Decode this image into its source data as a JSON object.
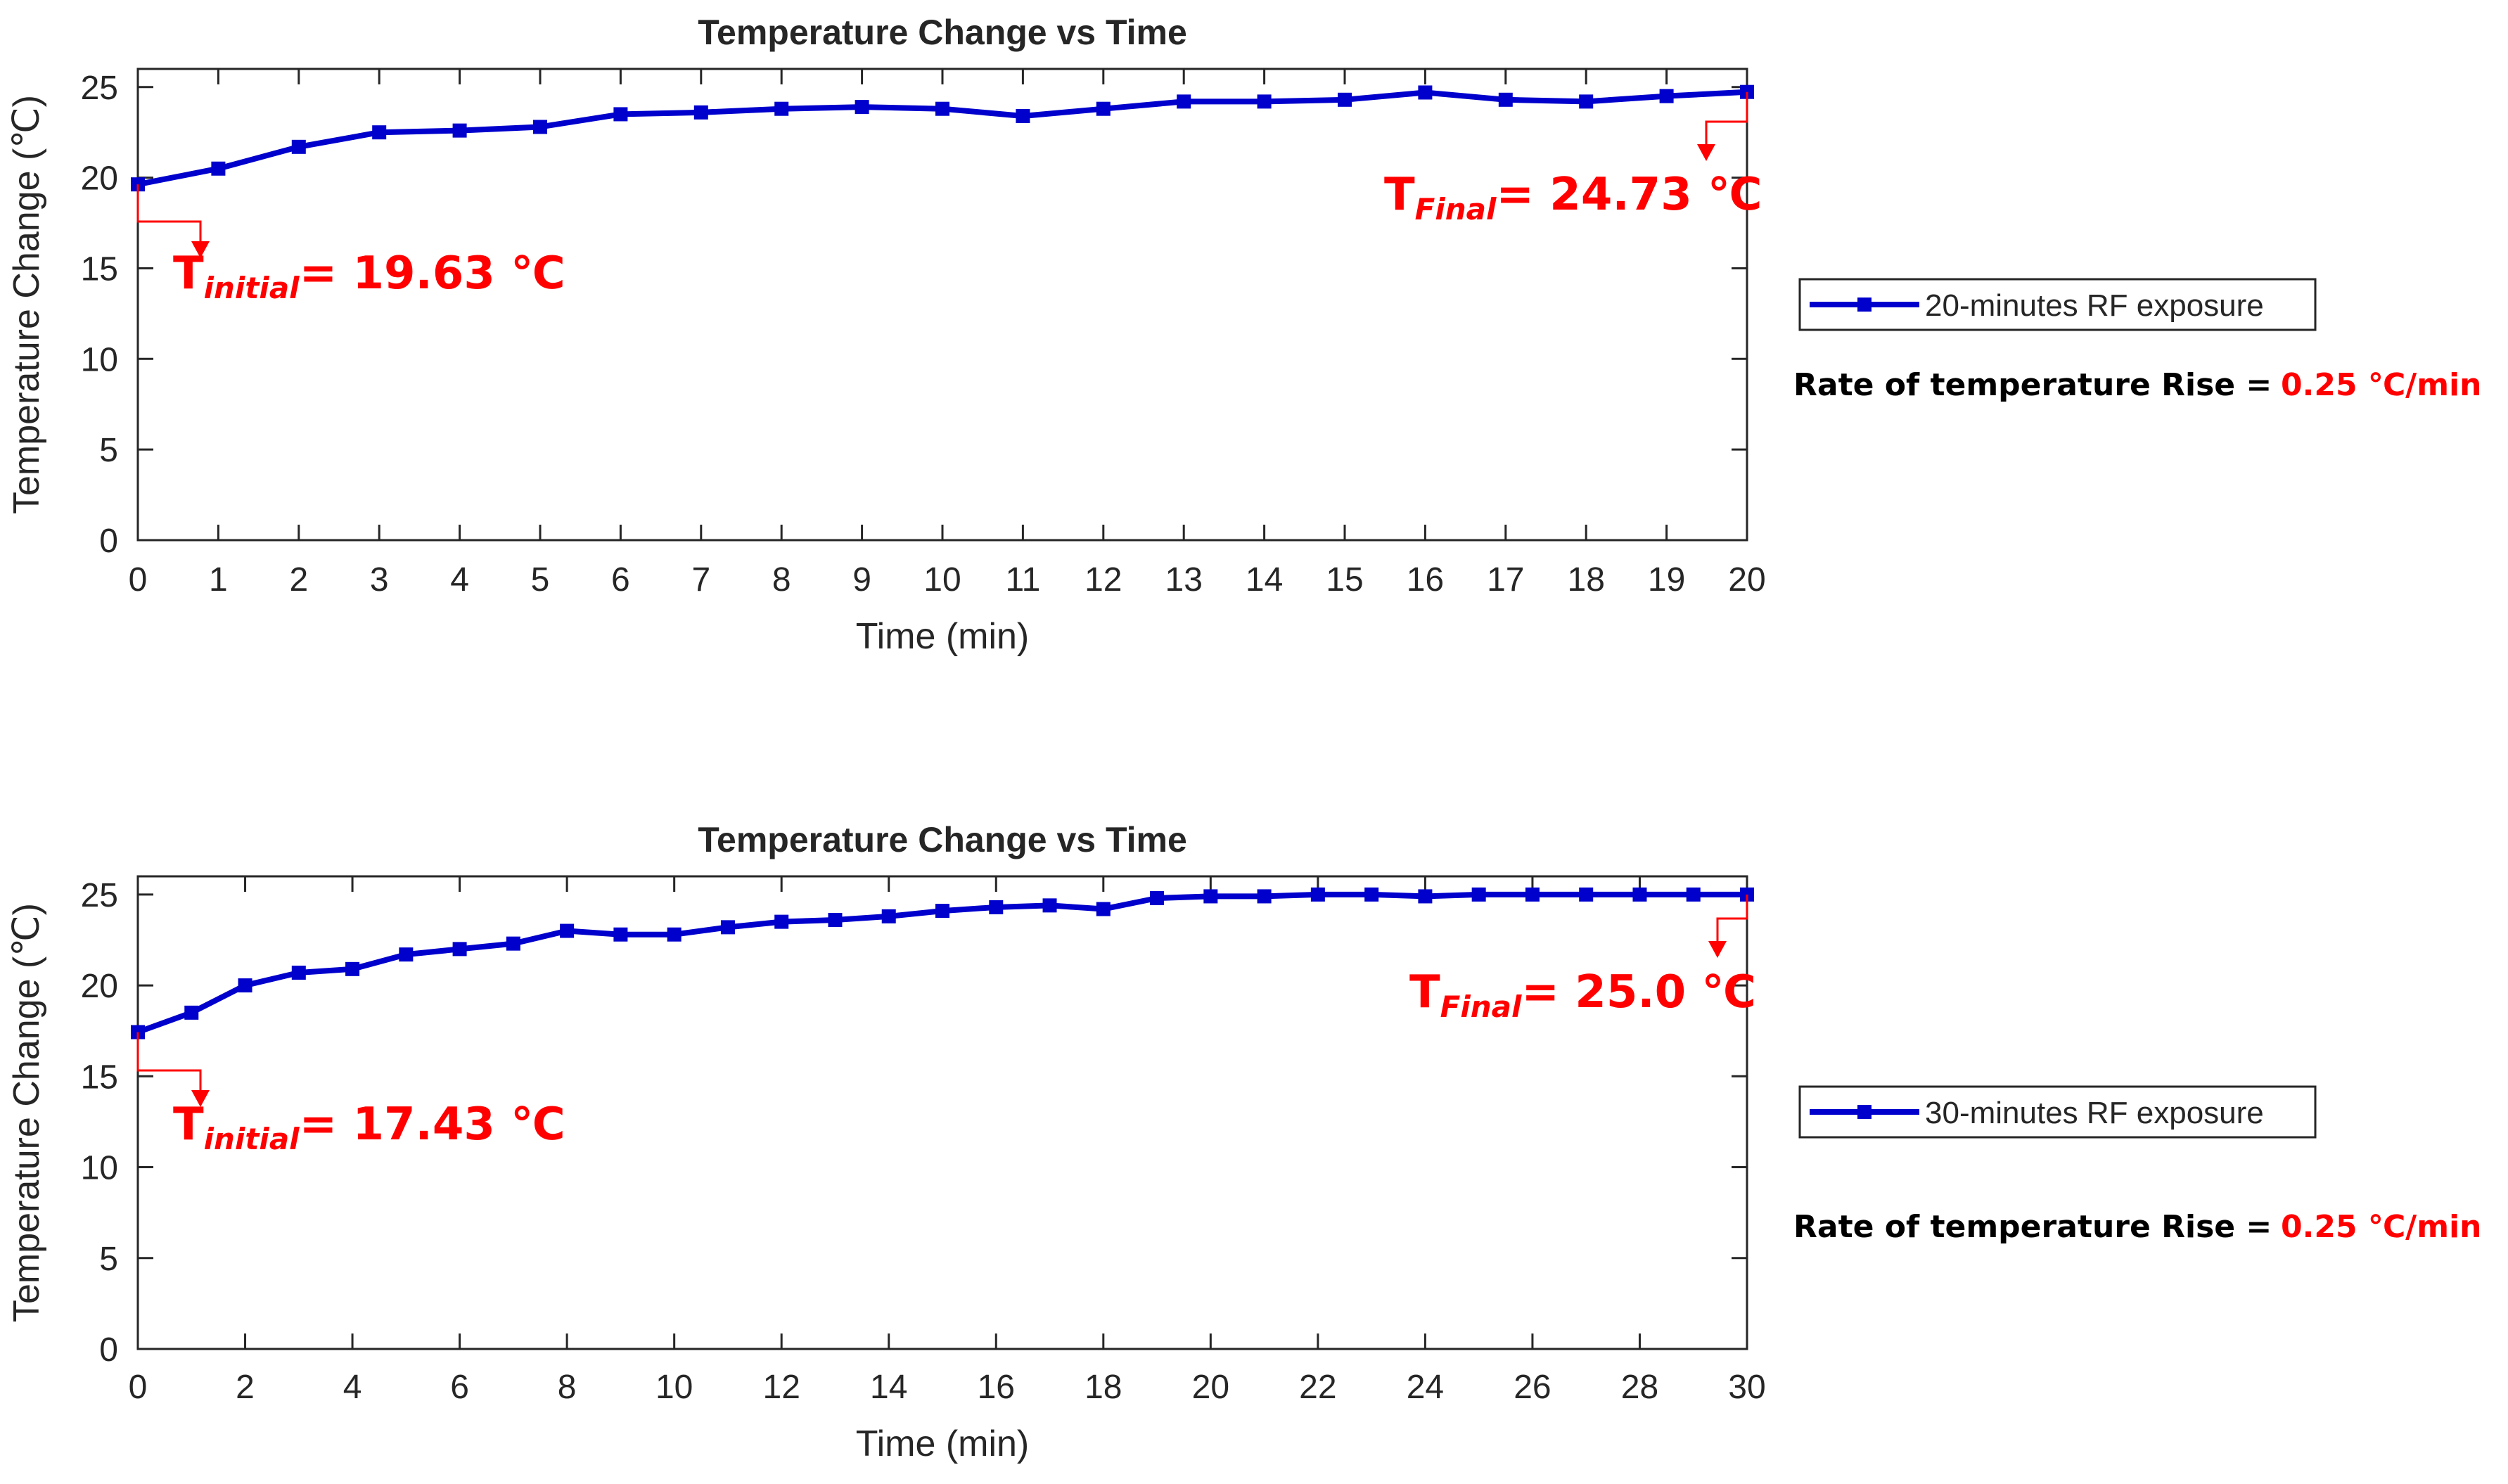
{
  "colors": {
    "series": "#0000cc",
    "annotation": "#ff0000",
    "text": "#262626",
    "axis": "#262626"
  },
  "charts": [
    {
      "title": "Temperature Change vs Time",
      "legend": "20-minutes RF exposure",
      "initial": {
        "prefix": "T",
        "sub": "initial",
        "value": "= 19.63 ℃"
      },
      "final": {
        "prefix": "T",
        "sub": "Final",
        "value": "= 24.73 ℃"
      },
      "rate_label": "Rate of temperature Rise = ",
      "rate_value": "0.25 ℃/min"
    },
    {
      "title": "Temperature Change vs Time",
      "legend": "30-minutes RF exposure",
      "initial": {
        "prefix": "T",
        "sub": "initial",
        "value": "= 17.43 ℃"
      },
      "final": {
        "prefix": "T",
        "sub": "Final",
        "value": "= 25.0 ℃"
      },
      "rate_label": "Rate of temperature Rise = ",
      "rate_value": "0.25 ℃/min"
    }
  ],
  "chart_data": [
    {
      "type": "line",
      "title": "Temperature Change vs Time",
      "xlabel": "Time (min)",
      "ylabel": "Temperature Change (℃)",
      "xlim": [
        0,
        20
      ],
      "ylim": [
        0,
        26
      ],
      "xticks": [
        0,
        1,
        2,
        3,
        4,
        5,
        6,
        7,
        8,
        9,
        10,
        11,
        12,
        13,
        14,
        15,
        16,
        17,
        18,
        19,
        20
      ],
      "yticks": [
        0,
        5,
        10,
        15,
        20,
        25
      ],
      "legend_position": "right",
      "series": [
        {
          "name": "20-minutes RF exposure",
          "x": [
            0,
            1,
            2,
            3,
            4,
            5,
            6,
            7,
            8,
            9,
            10,
            11,
            12,
            13,
            14,
            15,
            16,
            17,
            18,
            19,
            20
          ],
          "y": [
            19.63,
            20.5,
            21.7,
            22.5,
            22.6,
            22.8,
            23.5,
            23.6,
            23.8,
            23.9,
            23.8,
            23.4,
            23.8,
            24.2,
            24.2,
            24.3,
            24.7,
            24.3,
            24.2,
            24.5,
            24.73
          ]
        }
      ]
    },
    {
      "type": "line",
      "title": "Temperature Change vs Time",
      "xlabel": "Time (min)",
      "ylabel": "Temperature Change (℃)",
      "xlim": [
        0,
        30
      ],
      "ylim": [
        0,
        26
      ],
      "xticks": [
        0,
        2,
        4,
        6,
        8,
        10,
        12,
        14,
        16,
        18,
        20,
        22,
        24,
        26,
        28,
        30
      ],
      "yticks": [
        0,
        5,
        10,
        15,
        20,
        25
      ],
      "legend_position": "right",
      "series": [
        {
          "name": "30-minutes RF exposure",
          "x": [
            0,
            1,
            2,
            3,
            4,
            5,
            6,
            7,
            8,
            9,
            10,
            11,
            12,
            13,
            14,
            15,
            16,
            17,
            18,
            19,
            20,
            21,
            22,
            23,
            24,
            25,
            26,
            27,
            28,
            29,
            30
          ],
          "y": [
            17.43,
            18.5,
            20.0,
            20.7,
            20.9,
            21.7,
            22.0,
            22.3,
            23.0,
            22.8,
            22.8,
            23.2,
            23.5,
            23.6,
            23.8,
            24.1,
            24.3,
            24.4,
            24.2,
            24.8,
            24.9,
            24.9,
            25.0,
            25.0,
            24.9,
            25.0,
            25.0,
            25.0,
            25.0,
            25.0,
            25.0
          ]
        }
      ]
    }
  ]
}
